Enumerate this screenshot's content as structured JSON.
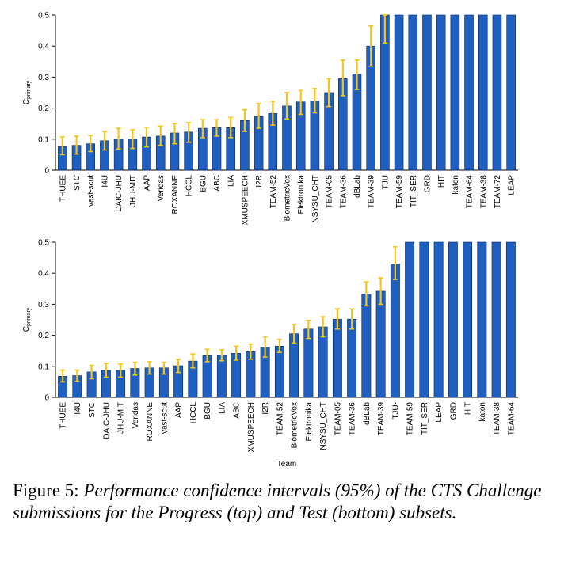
{
  "chart_data": [
    {
      "type": "bar",
      "title": "",
      "xlabel": "",
      "ylabel": "C_primary",
      "ylabel_main": "C",
      "ylabel_sub": "primary",
      "ylim": [
        0,
        0.5
      ],
      "yticks": [
        "0",
        "0.1",
        "0.2",
        "0.3",
        "0.4",
        "0.5"
      ],
      "grid": false,
      "legend": "none",
      "bar_color": "#1f5fbf",
      "error_color": "#f5c518",
      "categories": [
        "THUEE",
        "STC",
        "vast-scut",
        "I4U",
        "DAIC-JHU",
        "JHU-MIT",
        "AAP",
        "Veridas",
        "ROXANNE",
        "HCCL",
        "BGU",
        "ABC",
        "LIA",
        "XMUSPEECH",
        "I2R",
        "TEAM-52",
        "BiometricVox",
        "Elektronika",
        "NSYSU_CHT",
        "TEAM-05",
        "TEAM-36",
        "dBLab",
        "TEAM-39",
        "TJU",
        "TEAM-59",
        "TIT_SER",
        "GRD",
        "HIT",
        "katon",
        "TEAM-64",
        "TEAM-38",
        "TEAM-72",
        "LEAP"
      ],
      "values": [
        0.077,
        0.08,
        0.085,
        0.095,
        0.1,
        0.1,
        0.107,
        0.11,
        0.12,
        0.123,
        0.135,
        0.137,
        0.137,
        0.16,
        0.173,
        0.183,
        0.207,
        0.22,
        0.223,
        0.25,
        0.295,
        0.31,
        0.4,
        0.5,
        0.5,
        0.5,
        0.5,
        0.5,
        0.5,
        0.5,
        0.5,
        0.5,
        0.5
      ],
      "lower": [
        0.05,
        0.052,
        0.06,
        0.065,
        0.068,
        0.07,
        0.075,
        0.08,
        0.085,
        0.09,
        0.105,
        0.11,
        0.105,
        0.125,
        0.135,
        0.145,
        0.165,
        0.18,
        0.185,
        0.205,
        0.24,
        0.26,
        0.335,
        0.41,
        0.5,
        0.5,
        0.5,
        0.5,
        0.5,
        0.5,
        0.5,
        0.5,
        0.5
      ],
      "upper": [
        0.107,
        0.11,
        0.112,
        0.125,
        0.135,
        0.13,
        0.138,
        0.142,
        0.15,
        0.153,
        0.163,
        0.163,
        0.17,
        0.195,
        0.215,
        0.222,
        0.25,
        0.257,
        0.263,
        0.295,
        0.355,
        0.355,
        0.465,
        0.5,
        0.5,
        0.5,
        0.5,
        0.5,
        0.5,
        0.5,
        0.5,
        0.5,
        0.5
      ]
    },
    {
      "type": "bar",
      "title": "",
      "xlabel": "Team",
      "ylabel": "C_primary",
      "ylabel_main": "C",
      "ylabel_sub": "primary",
      "ylim": [
        0,
        0.5
      ],
      "yticks": [
        "0",
        "0.1",
        "0.2",
        "0.3",
        "0.4",
        "0.5"
      ],
      "grid": false,
      "legend": "none",
      "bar_color": "#1f5fbf",
      "error_color": "#f5c518",
      "categories": [
        "THUEE",
        "I4U",
        "STC",
        "DAIC-JHU",
        "JHU-MIT",
        "Veridas",
        "ROXANNE",
        "vast-scut",
        "AAP",
        "HCCL",
        "BGU",
        "LIA",
        "ABC",
        "XMUSPEECH",
        "I2R",
        "TEAM-52",
        "BiometricVox",
        "Elektronika",
        "NSYSU_CHT",
        "TEAM-05",
        "TEAM-36",
        "dBLab",
        "TEAM-39",
        "TJU-",
        "TEAM-59",
        "TIT_SER",
        "LEAP",
        "GRD",
        "HIT",
        "katon",
        "TEAM-38",
        "TEAM-64"
      ],
      "values": [
        0.068,
        0.07,
        0.082,
        0.087,
        0.087,
        0.093,
        0.095,
        0.095,
        0.102,
        0.117,
        0.135,
        0.137,
        0.142,
        0.147,
        0.162,
        0.165,
        0.205,
        0.22,
        0.227,
        0.252,
        0.252,
        0.333,
        0.342,
        0.43,
        0.5,
        0.5,
        0.5,
        0.5,
        0.5,
        0.5,
        0.5,
        0.5
      ],
      "lower": [
        0.05,
        0.052,
        0.06,
        0.065,
        0.065,
        0.072,
        0.075,
        0.075,
        0.08,
        0.095,
        0.115,
        0.118,
        0.12,
        0.123,
        0.13,
        0.145,
        0.175,
        0.19,
        0.195,
        0.22,
        0.22,
        0.295,
        0.3,
        0.38,
        0.5,
        0.5,
        0.5,
        0.5,
        0.5,
        0.5,
        0.5,
        0.5
      ],
      "upper": [
        0.088,
        0.088,
        0.103,
        0.11,
        0.108,
        0.113,
        0.115,
        0.113,
        0.123,
        0.14,
        0.155,
        0.153,
        0.165,
        0.172,
        0.195,
        0.187,
        0.235,
        0.248,
        0.26,
        0.285,
        0.285,
        0.372,
        0.385,
        0.485,
        0.5,
        0.5,
        0.5,
        0.5,
        0.5,
        0.5,
        0.5,
        0.5
      ]
    }
  ],
  "caption": {
    "label": "Figure 5:",
    "text": "Performance confidence intervals (95%) of the CTS Challenge submissions for the Progress (top) and Test (bottom) subsets."
  }
}
